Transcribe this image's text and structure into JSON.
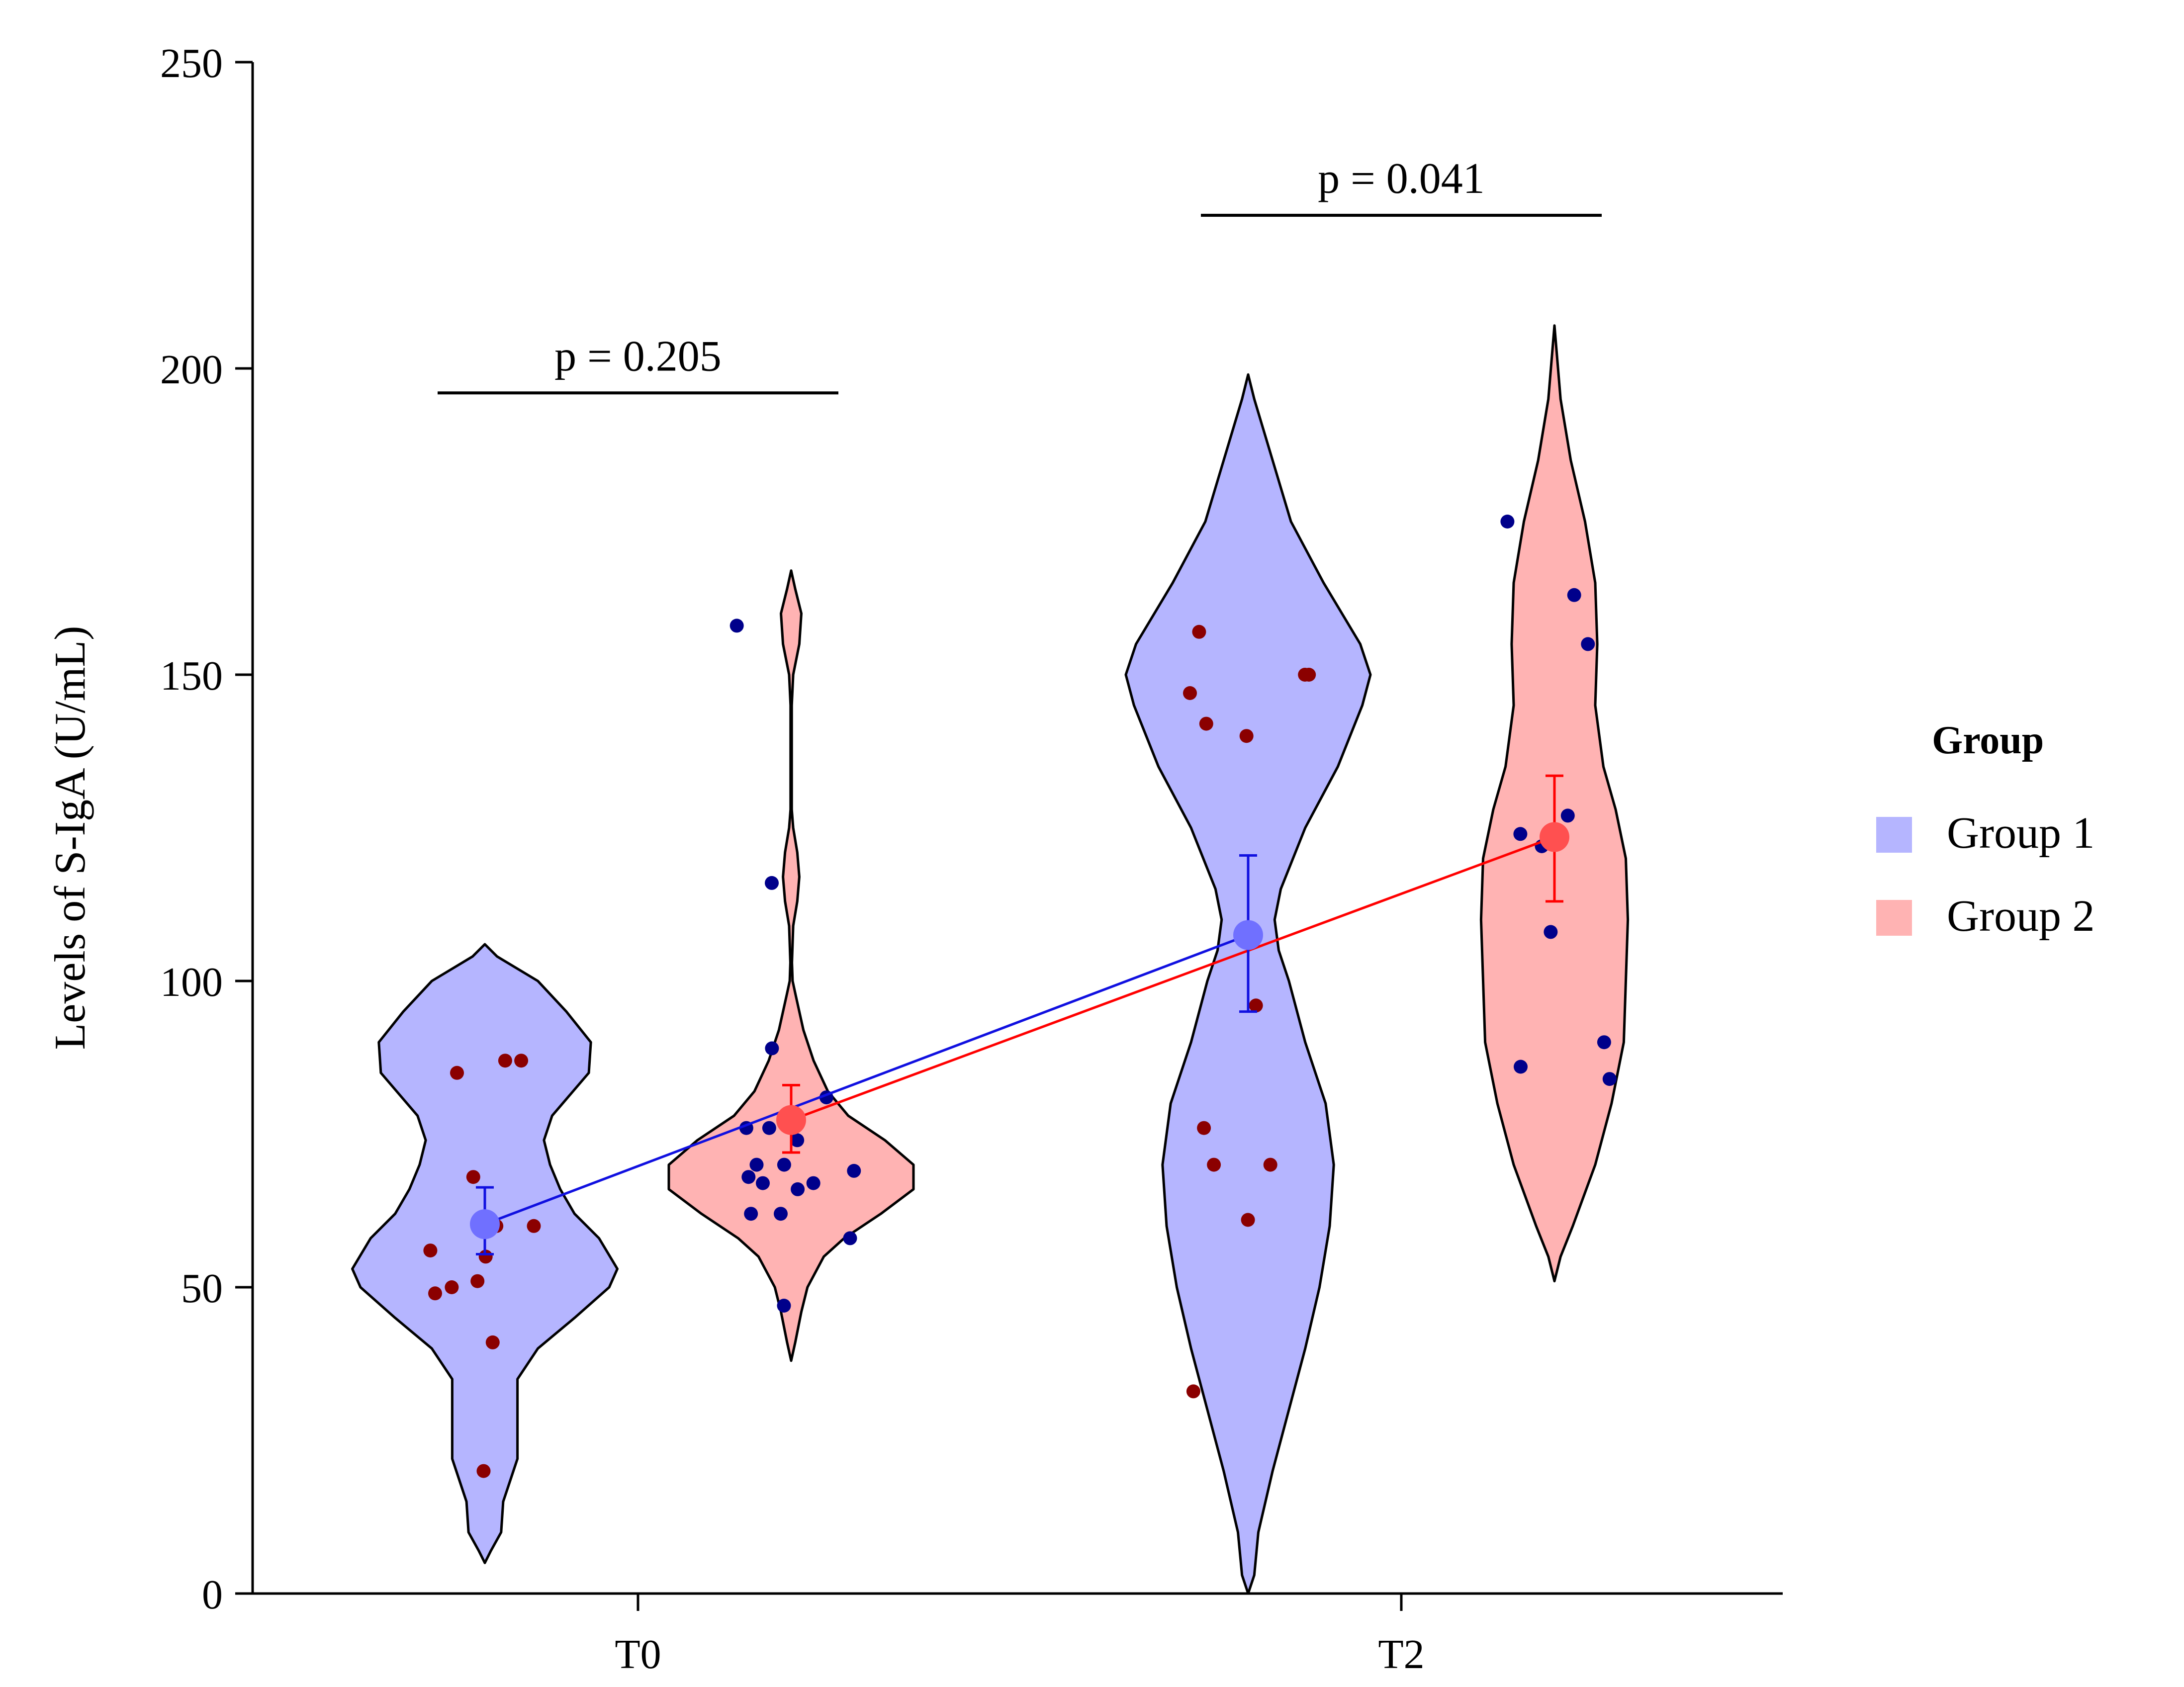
{
  "chart_data": {
    "type": "violin",
    "title": "",
    "xlabel": "",
    "ylabel": "Levels of S-IgA (U/mL)",
    "ylim": [
      0,
      250
    ],
    "yticks": [
      0,
      50,
      100,
      150,
      200,
      250
    ],
    "categories": [
      "T0",
      "T2"
    ],
    "legend": {
      "title": "Group",
      "position": "right",
      "entries": [
        {
          "name": "Group 1",
          "fill": "#b5b5ff"
        },
        {
          "name": "Group 2",
          "fill": "#ffb3b3"
        }
      ]
    },
    "colors": {
      "group1_fill": "#b5b5ff",
      "group2_fill": "#ffb3b3",
      "group1_line": "#1010e0",
      "group2_line": "#ff0000",
      "group1_mean": "#7070ff",
      "group2_mean": "#ff5050",
      "points_on_group1": "#8b0000",
      "points_on_group2": "#00008b"
    },
    "series": [
      {
        "name": "Group 1",
        "violins": [
          {
            "category": "T0",
            "profile": [
              [
                5,
                0
              ],
              [
                7,
                3
              ],
              [
                10,
                8
              ],
              [
                15,
                9
              ],
              [
                20,
                14
              ],
              [
                22,
                16
              ],
              [
                35,
                16
              ],
              [
                40,
                26
              ],
              [
                45,
                44
              ],
              [
                50,
                61
              ],
              [
                53,
                65
              ],
              [
                58,
                56
              ],
              [
                62,
                44
              ],
              [
                66,
                37
              ],
              [
                70,
                32
              ],
              [
                74,
                29
              ],
              [
                78,
                33
              ],
              [
                85,
                51
              ],
              [
                90,
                52
              ],
              [
                95,
                40
              ],
              [
                100,
                26
              ],
              [
                104,
                6
              ],
              [
                106,
                0
              ]
            ],
            "points": [
              20,
              41,
              49,
              50,
              51,
              55,
              56,
              60,
              60,
              68,
              85,
              87,
              87
            ],
            "mean": 60.3,
            "err": [
              55.4,
              66.3
            ]
          },
          {
            "category": "T2",
            "profile": [
              [
                0,
                0
              ],
              [
                3,
                3
              ],
              [
                10,
                5
              ],
              [
                20,
                12
              ],
              [
                30,
                20
              ],
              [
                40,
                28
              ],
              [
                50,
                35
              ],
              [
                60,
                40
              ],
              [
                70,
                42
              ],
              [
                80,
                38
              ],
              [
                90,
                28
              ],
              [
                100,
                20
              ],
              [
                105,
                15
              ],
              [
                110,
                13
              ],
              [
                115,
                16
              ],
              [
                125,
                28
              ],
              [
                135,
                44
              ],
              [
                145,
                56
              ],
              [
                150,
                60
              ],
              [
                155,
                55
              ],
              [
                165,
                37
              ],
              [
                175,
                21
              ],
              [
                185,
                12
              ],
              [
                195,
                3
              ],
              [
                199,
                0
              ]
            ],
            "points": [
              33,
              61,
              70,
              70,
              76,
              96,
              140,
              142,
              147,
              150,
              150,
              157
            ],
            "mean": 107.5,
            "err": [
              95,
              120.5
            ]
          }
        ]
      },
      {
        "name": "Group 2",
        "violins": [
          {
            "category": "T0",
            "profile": [
              [
                38,
                0
              ],
              [
                41,
                2
              ],
              [
                46,
                5
              ],
              [
                50,
                8
              ],
              [
                55,
                16
              ],
              [
                58,
                26
              ],
              [
                62,
                44
              ],
              [
                66,
                60
              ],
              [
                70,
                60
              ],
              [
                74,
                46
              ],
              [
                78,
                28
              ],
              [
                82,
                18
              ],
              [
                87,
                11
              ],
              [
                92,
                6
              ],
              [
                98,
                2
              ],
              [
                100,
                0.7
              ],
              [
                103,
                0.4
              ],
              [
                109,
                1
              ],
              [
                113,
                3
              ],
              [
                117,
                4
              ],
              [
                121,
                3
              ],
              [
                125,
                1
              ],
              [
                128,
                0.3
              ],
              [
                145,
                0.3
              ],
              [
                150,
                1
              ],
              [
                155,
                4
              ],
              [
                160,
                5
              ],
              [
                164,
                2
              ],
              [
                167,
                0
              ]
            ],
            "points": [
              47,
              58,
              62,
              62,
              66,
              67,
              67,
              68,
              69,
              70,
              70,
              74,
              76,
              76,
              81,
              89,
              116,
              158
            ],
            "mean": 77.3,
            "err": [
              72,
              83
            ]
          },
          {
            "category": "T2",
            "profile": [
              [
                51,
                0
              ],
              [
                55,
                3
              ],
              [
                60,
                9
              ],
              [
                70,
                20
              ],
              [
                80,
                28
              ],
              [
                90,
                34
              ],
              [
                100,
                35
              ],
              [
                110,
                36
              ],
              [
                120,
                35
              ],
              [
                128,
                30
              ],
              [
                135,
                24
              ],
              [
                145,
                20
              ],
              [
                155,
                21
              ],
              [
                165,
                20
              ],
              [
                175,
                15
              ],
              [
                185,
                8
              ],
              [
                195,
                3
              ],
              [
                203,
                1
              ],
              [
                207,
                0
              ]
            ],
            "points": [
              84,
              86,
              90,
              108,
              124,
              127,
              122,
              155,
              163,
              175
            ],
            "mean": 123.5,
            "err": [
              113,
              133.5
            ]
          }
        ]
      }
    ],
    "annotations": [
      {
        "text": "p = 0.205",
        "category": "T0",
        "y": 196
      },
      {
        "text": "p = 0.041",
        "category": "T2",
        "y": 225
      }
    ]
  }
}
